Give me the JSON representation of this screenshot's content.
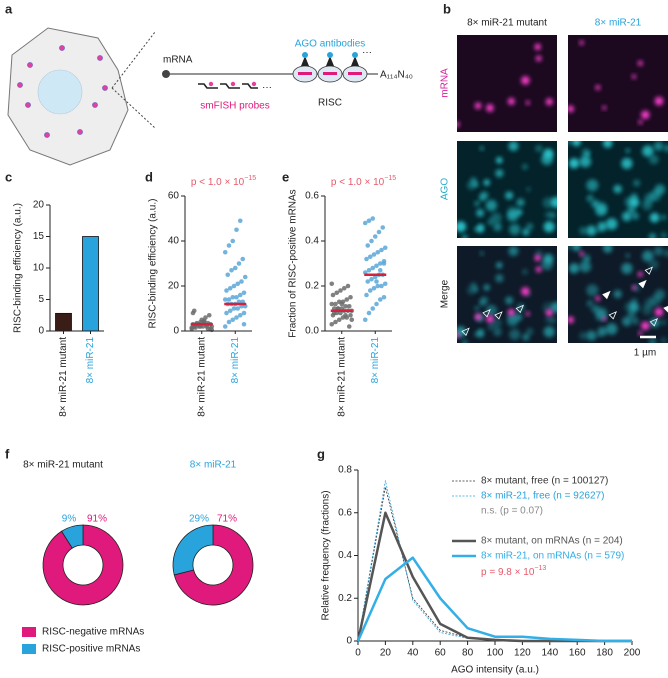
{
  "panel_labels": [
    "a",
    "b",
    "c",
    "d",
    "e",
    "f",
    "g"
  ],
  "diagram": {
    "mrna": "mRNA",
    "ago_antibodies": "AGO antibodies",
    "smfish_probes": "smFISH probes",
    "risc": "RISC",
    "tail": "A₁₁₄N₄₀"
  },
  "images": {
    "columns": [
      "8× miR-21 mutant",
      "8× miR-21"
    ],
    "column_colors": [
      "#222222",
      "#29a3dc"
    ],
    "rows": [
      "mRNA",
      "AGO",
      "Merge"
    ],
    "row_colors": [
      "#d6209a",
      "#22a9c8",
      "#222222"
    ],
    "scale_bar": "1 µm"
  },
  "chart_data": [
    {
      "type": "bar",
      "ylabel": "RISC-binding efficiency (a.u.)",
      "categories": [
        "8× miR-21 mutant",
        "8× miR-21"
      ],
      "category_colors": [
        "#222222",
        "#29a3dc"
      ],
      "values": [
        2.8,
        15
      ],
      "colors": [
        "#3b1d17",
        "#29a3dc"
      ],
      "ylim": [
        0,
        20
      ],
      "yticks": [
        0,
        5,
        10,
        15,
        20
      ]
    },
    {
      "type": "strip",
      "ylabel": "RISC-binding efficiency (a.u.)",
      "annotation": {
        "text": "p < 1.0 × 10",
        "exponent": "−15"
      },
      "categories": [
        "8× miR-21 mutant",
        "8× miR-21"
      ],
      "category_colors": [
        "#222222",
        "#29a3dc"
      ],
      "series": [
        {
          "name": "8× miR-21 mutant",
          "color": "#6b6b6b",
          "values": [
            1,
            1.5,
            2,
            2,
            2.5,
            3,
            3,
            3.5,
            4,
            4,
            1,
            0.5,
            2,
            3,
            5,
            6,
            7,
            1.5,
            2.5,
            3,
            4,
            2,
            1,
            8,
            3,
            2,
            4.5,
            3.5,
            2,
            9
          ]
        },
        {
          "name": "8× miR-21",
          "color": "#5aa7d8",
          "values": [
            2,
            4,
            5,
            6,
            7,
            8,
            8,
            9,
            10,
            10,
            11,
            11,
            12,
            12,
            12,
            13,
            13,
            14,
            14,
            15,
            15,
            16,
            17,
            18,
            19,
            20,
            21,
            22,
            24,
            25,
            27,
            28,
            30,
            32,
            35,
            38,
            40,
            45,
            49,
            3
          ]
        }
      ],
      "medians": [
        3,
        12
      ],
      "median_color": "#d4213d",
      "ylim": [
        0,
        60
      ],
      "yticks": [
        0,
        20,
        40,
        60
      ]
    },
    {
      "type": "strip",
      "ylabel": "Fraction of RISC-positive mRNAs",
      "annotation": {
        "text": "p < 1.0 × 10",
        "exponent": "−15"
      },
      "categories": [
        "8× miR-21 mutant",
        "8× miR-21"
      ],
      "category_colors": [
        "#222222",
        "#29a3dc"
      ],
      "series": [
        {
          "name": "8× miR-21 mutant",
          "color": "#6b6b6b",
          "values": [
            0.03,
            0.04,
            0.05,
            0.06,
            0.06,
            0.07,
            0.07,
            0.08,
            0.08,
            0.09,
            0.09,
            0.09,
            0.1,
            0.1,
            0.1,
            0.11,
            0.11,
            0.12,
            0.12,
            0.13,
            0.13,
            0.14,
            0.15,
            0.16,
            0.17,
            0.18,
            0.19,
            0.2,
            0.05,
            0.08,
            0.1,
            0.12,
            0.07,
            0.02,
            0.21
          ]
        },
        {
          "name": "8× miR-21",
          "color": "#5aa7d8",
          "values": [
            0.05,
            0.08,
            0.1,
            0.12,
            0.14,
            0.15,
            0.16,
            0.18,
            0.19,
            0.2,
            0.2,
            0.21,
            0.22,
            0.23,
            0.24,
            0.25,
            0.25,
            0.26,
            0.27,
            0.28,
            0.29,
            0.3,
            0.31,
            0.32,
            0.33,
            0.34,
            0.35,
            0.36,
            0.37,
            0.38,
            0.4,
            0.42,
            0.44,
            0.46,
            0.48,
            0.49,
            0.5,
            0.22,
            0.27,
            0.3
          ]
        }
      ],
      "medians": [
        0.09,
        0.25
      ],
      "median_color": "#d4213d",
      "ylim": [
        0,
        0.6
      ],
      "yticks": [
        {
          "value": 0,
          "label": "0.0"
        },
        0.2,
        0.4,
        0.6
      ]
    },
    {
      "type": "pie",
      "categories": [
        "RISC-negative mRNAs",
        "RISC-positive mRNAs"
      ],
      "colors": [
        "#e0197d",
        "#29a3dc"
      ],
      "pies": [
        {
          "title": "8× miR-21 mutant",
          "title_color": "#222222",
          "values": [
            91,
            9
          ],
          "value_labels": [
            "91%",
            "9%"
          ]
        },
        {
          "title": "8× miR-21",
          "title_color": "#29a3dc",
          "values": [
            71,
            29
          ],
          "value_labels": [
            "71%",
            "29%"
          ]
        }
      ]
    },
    {
      "type": "line",
      "xlabel": "AGO intensity (a.u.)",
      "ylabel": "Relative frequency (fractions)",
      "x": [
        0,
        20,
        40,
        60,
        80,
        100,
        120,
        140,
        160,
        180,
        200
      ],
      "series": [
        {
          "name": "8× mutant, free (n = 100127)",
          "color": "#333333",
          "dashed": true,
          "width": 0.8,
          "values": [
            0,
            0.72,
            0.2,
            0.05,
            0.015,
            0.005,
            0,
            0,
            0,
            0,
            0
          ]
        },
        {
          "name": "8× miR-21, free (n = 92627)",
          "color": "#29a3dc",
          "dashed": true,
          "width": 0.8,
          "values": [
            0,
            0.75,
            0.19,
            0.04,
            0.012,
            0.004,
            0,
            0,
            0,
            0,
            0
          ]
        },
        {
          "name": "8× mutant, on mRNAs (n = 204)",
          "color": "#555555",
          "dashed": false,
          "width": 2.5,
          "values": [
            0,
            0.6,
            0.3,
            0.08,
            0.015,
            0.005,
            0,
            0,
            0,
            0,
            0
          ]
        },
        {
          "name": "8× miR-21, on mRNAs (n = 579)",
          "color": "#33aee6",
          "dashed": false,
          "width": 2.5,
          "values": [
            0,
            0.29,
            0.39,
            0.2,
            0.06,
            0.02,
            0.02,
            0.01,
            0.005,
            0,
            0
          ]
        }
      ],
      "annotations": [
        {
          "text": "n.s. (p = 0.07)",
          "color": "#8a8a8a"
        },
        {
          "text": "p = 9.8 × 10",
          "exponent": "−13",
          "color": "#e8586a"
        }
      ],
      "xlim": [
        0,
        200
      ],
      "xticks": [
        0,
        20,
        40,
        60,
        80,
        100,
        120,
        140,
        160,
        180,
        200
      ],
      "ylim": [
        0,
        0.8
      ],
      "yticks": [
        0,
        0.2,
        0.4,
        0.6,
        0.8
      ]
    }
  ]
}
